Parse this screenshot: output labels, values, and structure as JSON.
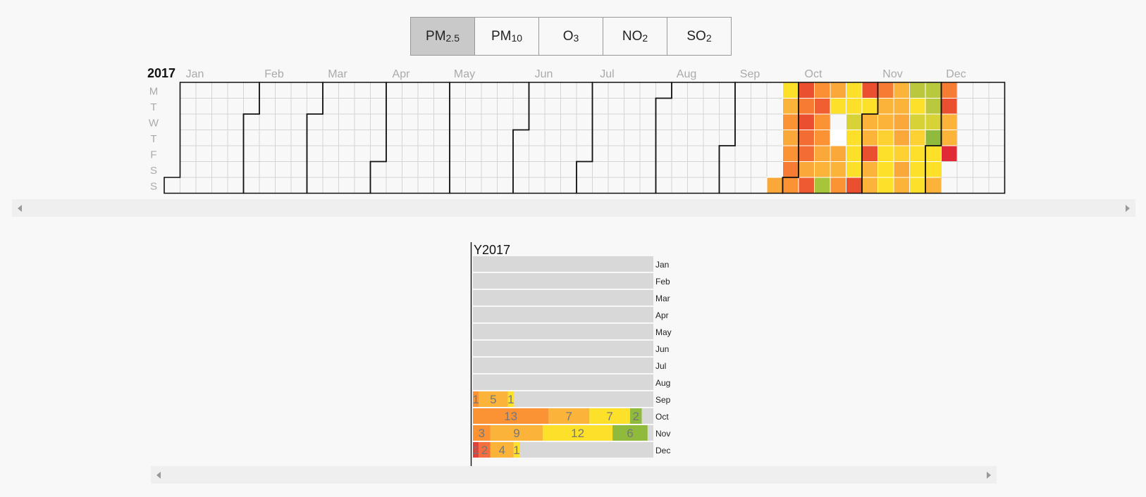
{
  "tabs": [
    {
      "base": "PM",
      "sub": "2.5",
      "active": true
    },
    {
      "base": "PM",
      "sub": "10",
      "active": false
    },
    {
      "base": "O",
      "sub": "3",
      "active": false
    },
    {
      "base": "NO",
      "sub": "2",
      "active": false
    },
    {
      "base": "SO",
      "sub": "2",
      "active": false
    }
  ],
  "chart_data": [
    {
      "type": "heatmap",
      "year_label": "2017",
      "month_labels": [
        "Jan",
        "Feb",
        "Mar",
        "Apr",
        "May",
        "Jun",
        "Jul",
        "Aug",
        "Sep",
        "Oct",
        "Nov",
        "Dec"
      ],
      "weekday_labels": [
        "M",
        "T",
        "W",
        "T",
        "F",
        "S",
        "S"
      ],
      "colors": {
        "empty_cell": "#f8f8f8",
        "grid_line": "#d4d4d4",
        "month_border": "#111111",
        "cell_border": "#ffffff"
      },
      "cells": [
        {
          "date": "2017-09-24",
          "color": "#fba83a"
        },
        {
          "date": "2017-09-25",
          "color": "#fde02a"
        },
        {
          "date": "2017-09-26",
          "color": "#fbb33a"
        },
        {
          "date": "2017-09-27",
          "color": "#fb9234"
        },
        {
          "date": "2017-09-28",
          "color": "#fba83a"
        },
        {
          "date": "2017-09-29",
          "color": "#fb9234"
        },
        {
          "date": "2017-09-30",
          "color": "#f67b33"
        },
        {
          "date": "2017-10-01",
          "color": "#fb9234"
        },
        {
          "date": "2017-10-02",
          "color": "#ea5030"
        },
        {
          "date": "2017-10-03",
          "color": "#f67b33"
        },
        {
          "date": "2017-10-04",
          "color": "#ea5030"
        },
        {
          "date": "2017-10-05",
          "color": "#f26c33"
        },
        {
          "date": "2017-10-06",
          "color": "#f26c33"
        },
        {
          "date": "2017-10-07",
          "color": "#fba83a"
        },
        {
          "date": "2017-10-08",
          "color": "#ec5b31"
        },
        {
          "date": "2017-10-09",
          "color": "#fb8f34"
        },
        {
          "date": "2017-10-10",
          "color": "#ef5f31"
        },
        {
          "date": "2017-10-11",
          "color": "#fb9234"
        },
        {
          "date": "2017-10-12",
          "color": "#fb9234"
        },
        {
          "date": "2017-10-13",
          "color": "#fba83a"
        },
        {
          "date": "2017-10-14",
          "color": "#fbb33a"
        },
        {
          "date": "2017-10-15",
          "color": "#a8c43a"
        },
        {
          "date": "2017-10-16",
          "color": "#fba83a"
        },
        {
          "date": "2017-10-17",
          "color": "#fde02a"
        },
        {
          "date": "2017-10-19",
          "color": "#ffffff"
        },
        {
          "date": "2017-10-20",
          "color": "#fba83a"
        },
        {
          "date": "2017-10-21",
          "color": "#fbb33a"
        },
        {
          "date": "2017-10-22",
          "color": "#fb9234"
        },
        {
          "date": "2017-10-23",
          "color": "#fde02a"
        },
        {
          "date": "2017-10-24",
          "color": "#fde02a"
        },
        {
          "date": "2017-10-25",
          "color": "#d7d236"
        },
        {
          "date": "2017-10-26",
          "color": "#fde02a"
        },
        {
          "date": "2017-10-27",
          "color": "#fde02a"
        },
        {
          "date": "2017-10-28",
          "color": "#fde02a"
        },
        {
          "date": "2017-10-29",
          "color": "#ea5030"
        },
        {
          "date": "2017-10-30",
          "color": "#ea5030"
        },
        {
          "date": "2017-10-31",
          "color": "#fde02a"
        },
        {
          "date": "2017-11-01",
          "color": "#fbb33a"
        },
        {
          "date": "2017-11-02",
          "color": "#fbb33a"
        },
        {
          "date": "2017-11-03",
          "color": "#ea5030"
        },
        {
          "date": "2017-11-04",
          "color": "#fbb33a"
        },
        {
          "date": "2017-11-05",
          "color": "#fbb33a"
        },
        {
          "date": "2017-11-06",
          "color": "#f67b33"
        },
        {
          "date": "2017-11-07",
          "color": "#fbb33a"
        },
        {
          "date": "2017-11-08",
          "color": "#fbb33a"
        },
        {
          "date": "2017-11-09",
          "color": "#fdd131"
        },
        {
          "date": "2017-11-10",
          "color": "#fde02a"
        },
        {
          "date": "2017-11-11",
          "color": "#fde02a"
        },
        {
          "date": "2017-11-12",
          "color": "#fde02a"
        },
        {
          "date": "2017-11-13",
          "color": "#fbb33a"
        },
        {
          "date": "2017-11-14",
          "color": "#fbb33a"
        },
        {
          "date": "2017-11-15",
          "color": "#fba83a"
        },
        {
          "date": "2017-11-16",
          "color": "#fba83a"
        },
        {
          "date": "2017-11-17",
          "color": "#fdd131"
        },
        {
          "date": "2017-11-18",
          "color": "#fba83a"
        },
        {
          "date": "2017-11-19",
          "color": "#fbb33a"
        },
        {
          "date": "2017-11-20",
          "color": "#b9c83c"
        },
        {
          "date": "2017-11-21",
          "color": "#fde02a"
        },
        {
          "date": "2017-11-22",
          "color": "#d7d236"
        },
        {
          "date": "2017-11-23",
          "color": "#fdd131"
        },
        {
          "date": "2017-11-24",
          "color": "#fde02a"
        },
        {
          "date": "2017-11-25",
          "color": "#fde02a"
        },
        {
          "date": "2017-11-26",
          "color": "#fde02a"
        },
        {
          "date": "2017-11-27",
          "color": "#b9c83c"
        },
        {
          "date": "2017-11-28",
          "color": "#b9c83c"
        },
        {
          "date": "2017-11-29",
          "color": "#d7d236"
        },
        {
          "date": "2017-11-30",
          "color": "#8fba3c"
        },
        {
          "date": "2017-12-01",
          "color": "#fde02a"
        },
        {
          "date": "2017-12-02",
          "color": "#fde02a"
        },
        {
          "date": "2017-12-03",
          "color": "#fbb33a"
        },
        {
          "date": "2017-12-04",
          "color": "#f67b33"
        },
        {
          "date": "2017-12-05",
          "color": "#ea5030"
        },
        {
          "date": "2017-12-06",
          "color": "#fbb33a"
        },
        {
          "date": "2017-12-07",
          "color": "#fbb33a"
        },
        {
          "date": "2017-12-08",
          "color": "#e02b36"
        }
      ]
    },
    {
      "type": "bar",
      "stacked": true,
      "orientation": "horizontal",
      "title": "Y2017",
      "categories": [
        "Jan",
        "Feb",
        "Mar",
        "Apr",
        "May",
        "Jun",
        "Jul",
        "Aug",
        "Sep",
        "Oct",
        "Nov",
        "Dec"
      ],
      "max_total": 31,
      "empty_color": "#d8d8d8",
      "label_color": "#777777",
      "series": [
        {
          "color": "#e0413a",
          "values": [
            0,
            0,
            0,
            0,
            0,
            0,
            0,
            0,
            0,
            0,
            0,
            1
          ]
        },
        {
          "color": "#f56f3c",
          "values": [
            0,
            0,
            0,
            0,
            0,
            0,
            0,
            0,
            0,
            0,
            0,
            2
          ]
        },
        {
          "color": "#fb9234",
          "values": [
            0,
            0,
            0,
            0,
            0,
            0,
            0,
            0,
            1,
            13,
            3,
            0
          ]
        },
        {
          "color": "#fbb33a",
          "values": [
            0,
            0,
            0,
            0,
            0,
            0,
            0,
            0,
            5,
            7,
            9,
            4
          ]
        },
        {
          "color": "#fde02a",
          "values": [
            0,
            0,
            0,
            0,
            0,
            0,
            0,
            0,
            1,
            7,
            12,
            1
          ]
        },
        {
          "color": "#8fba3c",
          "values": [
            0,
            0,
            0,
            0,
            0,
            0,
            0,
            0,
            0,
            2,
            6,
            0
          ]
        }
      ]
    }
  ]
}
